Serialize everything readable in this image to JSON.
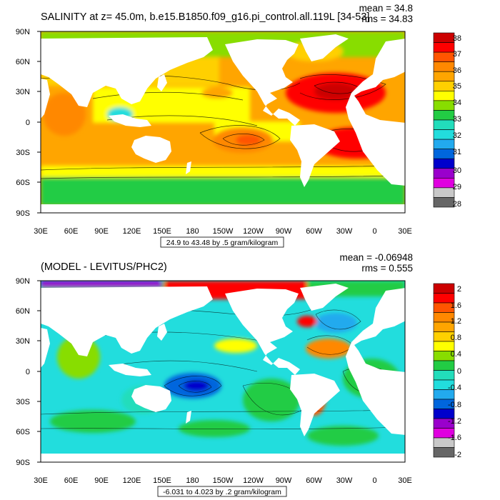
{
  "colors": {
    "land": "#ffffff",
    "frame": "#000000",
    "salinity_scale": [
      "#666666",
      "#c8c8c8",
      "#e000e0",
      "#9a00cc",
      "#0000cc",
      "#0066dd",
      "#22aaee",
      "#22dddd",
      "#22ddbb",
      "#22cc44",
      "#88dd00",
      "#ffff00",
      "#ffd000",
      "#ffa500",
      "#ff8800",
      "#ff5500",
      "#ff0000",
      "#cc0000"
    ],
    "diff_scale": [
      "#666666",
      "#c8c8c8",
      "#e000e0",
      "#9a00cc",
      "#0000cc",
      "#0066dd",
      "#22aaee",
      "#22dddd",
      "#22ddbb",
      "#22cc44",
      "#88dd00",
      "#ffff00",
      "#ffd000",
      "#ffa500",
      "#ff8800",
      "#ff5500",
      "#ff0000",
      "#cc0000"
    ]
  },
  "panels": [
    {
      "id": "salinity",
      "title": "SALINITY at z=  45.0m, b.e15.B1850.f09_g16.pi_control.all.119L [34-53]",
      "mean_text": "mean = 34.8",
      "rms_text": "rms = 34.83",
      "range_text": "24.9 to 43.48 by .5 gram/kilogram",
      "lat_labels": [
        "90N",
        "60N",
        "30N",
        "0",
        "30S",
        "60S",
        "90S"
      ],
      "lon_labels": [
        "30E",
        "60E",
        "90E",
        "120E",
        "150E",
        "180",
        "150W",
        "120W",
        "90W",
        "60W",
        "30W",
        "0",
        "30E"
      ],
      "colorbar_labels": [
        "38",
        "37",
        "36",
        "35",
        "34",
        "33",
        "32",
        "31",
        "30",
        "29",
        "28"
      ]
    },
    {
      "id": "difference",
      "title": "(MODEL - LEVITUS/PHC2)",
      "mean_text": "mean = -0.06948",
      "rms_text": "rms = 0.555",
      "range_text": "-6.031 to 4.023 by .2 gram/kilogram",
      "lat_labels": [
        "90N",
        "60N",
        "30N",
        "0",
        "30S",
        "60S",
        "90S"
      ],
      "lon_labels": [
        "30E",
        "60E",
        "90E",
        "120E",
        "150E",
        "180",
        "150W",
        "120W",
        "90W",
        "60W",
        "30W",
        "0",
        "30E"
      ],
      "colorbar_labels": [
        "2",
        "1.6",
        "1.2",
        "0.8",
        "0.4",
        "0",
        "-0.4",
        "-0.8",
        "-1.2",
        "-1.6",
        "-2"
      ]
    }
  ]
}
